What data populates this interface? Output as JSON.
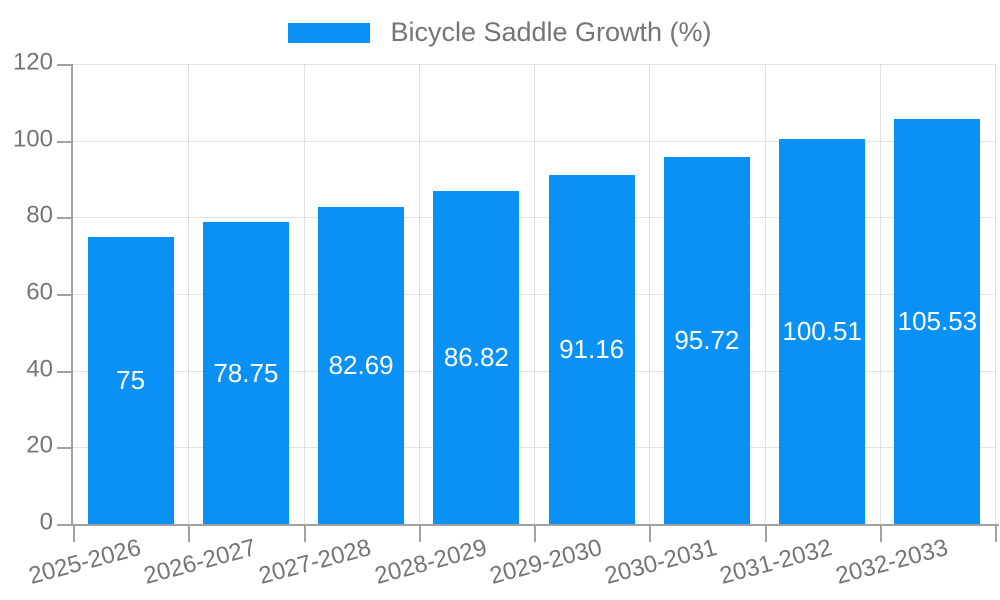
{
  "chart_data": {
    "type": "bar",
    "legend": {
      "position": "top",
      "entries": [
        "Bicycle Saddle Growth (%)"
      ]
    },
    "categories": [
      "2025-2026",
      "2026-2027",
      "2027-2028",
      "2028-2029",
      "2029-2030",
      "2030-2031",
      "2031-2032",
      "2032-2033"
    ],
    "series": [
      {
        "name": "Bicycle Saddle Growth (%)",
        "values": [
          75,
          78.75,
          82.69,
          86.82,
          91.16,
          95.72,
          100.51,
          105.53
        ]
      }
    ],
    "ylim": [
      0,
      120
    ],
    "yticks": [
      0,
      20,
      40,
      60,
      80,
      100,
      120
    ],
    "grid": true,
    "x_tick_rotation_deg": -15,
    "value_labels_inside_bars": true,
    "colors": {
      "bar": "#0a91f5",
      "bar_value_label": "#ffffff",
      "axis_text": "#757575",
      "axis_line": "#a1a1a1",
      "grid_line": "#e2e2e2",
      "background": "#ffffff"
    }
  }
}
